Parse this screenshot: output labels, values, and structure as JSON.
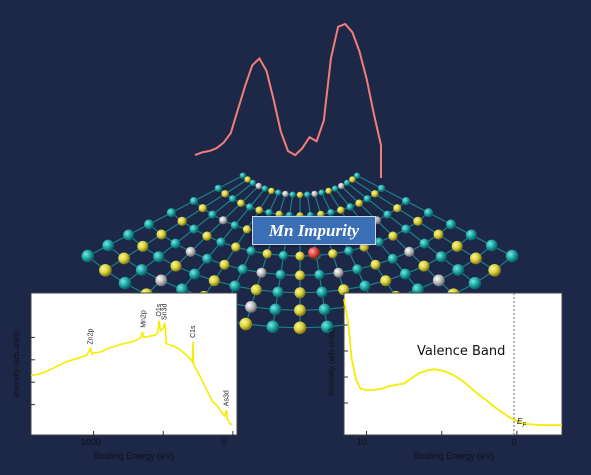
{
  "label": "Mn Impurity",
  "colors": {
    "background": "#1d2748",
    "peak_curve": "#f27e7a",
    "spectrum": "#f5ec00",
    "cyan_atom": "#1ba6a6",
    "gold_atom": "#d9d23a",
    "grey_atom": "#bdbdbd",
    "impurity_atom": "#e0463f"
  },
  "chart_data": [
    {
      "type": "line",
      "title": "",
      "xlabel": "Binding Energy (eV)",
      "ylabel": "Intensity (arb.units)",
      "x_ticks": [
        "1000",
        "0"
      ],
      "xlim": [
        1450,
        -30
      ],
      "x_reversed": true,
      "annotations": [
        "Zn2p",
        "Mn2p",
        "O1s",
        "Sn3d",
        "C1s",
        "As3d"
      ],
      "series": [
        {
          "x": [
            1450,
            1400,
            1350,
            1300,
            1250,
            1200,
            1150,
            1100,
            1050,
            1022,
            1010,
            1000,
            950,
            900,
            850,
            800,
            760,
            700,
            660,
            650,
            640,
            600,
            560,
            540,
            530,
            520,
            500,
            490,
            484,
            480,
            470,
            420,
            380,
            340,
            300,
            290,
            286,
            282,
            270,
            230,
            200,
            150,
            140,
            120,
            100,
            80,
            60,
            45,
            40,
            20,
            5
          ],
          "y": [
            0.46,
            0.47,
            0.49,
            0.52,
            0.55,
            0.58,
            0.6,
            0.62,
            0.64,
            0.7,
            0.65,
            0.66,
            0.67,
            0.7,
            0.72,
            0.74,
            0.75,
            0.77,
            0.8,
            0.85,
            0.8,
            0.81,
            0.82,
            0.84,
            0.95,
            0.86,
            0.88,
            0.92,
            0.89,
            0.75,
            0.74,
            0.72,
            0.69,
            0.65,
            0.6,
            0.58,
            0.76,
            0.56,
            0.53,
            0.44,
            0.36,
            0.24,
            0.22,
            0.2,
            0.17,
            0.13,
            0.1,
            0.15,
            0.07,
            0.03,
            0.02
          ]
        }
      ]
    },
    {
      "type": "line",
      "title": "Valence Band",
      "xlabel": "Binding Energy (eV)",
      "ylabel": "Intensity (arb.units)",
      "x_ticks": [
        "10",
        "5",
        "0"
      ],
      "xlim": [
        11.5,
        -3
      ],
      "x_reversed": true,
      "annotations": [
        "E_F"
      ],
      "series": [
        {
          "x": [
            11.5,
            11.2,
            11.0,
            10.7,
            10.4,
            10.0,
            9.5,
            9.0,
            8.5,
            8.0,
            7.5,
            7.0,
            6.5,
            6.0,
            5.5,
            5.0,
            4.5,
            4.0,
            3.5,
            3.0,
            2.5,
            2.0,
            1.5,
            1.0,
            0.5,
            0.0,
            -0.5,
            -1.0,
            -1.5,
            -2.0,
            -3.0
          ],
          "y": [
            1.0,
            0.8,
            0.55,
            0.38,
            0.31,
            0.3,
            0.3,
            0.31,
            0.33,
            0.34,
            0.35,
            0.39,
            0.43,
            0.45,
            0.46,
            0.45,
            0.43,
            0.4,
            0.36,
            0.31,
            0.26,
            0.22,
            0.17,
            0.13,
            0.09,
            0.06,
            0.04,
            0.035,
            0.03,
            0.03,
            0.03
          ]
        }
      ]
    },
    {
      "type": "line",
      "title": "",
      "series": [
        {
          "y": [
            0.05,
            0.07,
            0.08,
            0.1,
            0.14,
            0.21,
            0.38,
            0.55,
            0.7,
            0.75,
            0.66,
            0.45,
            0.22,
            0.08,
            0.05,
            0.1,
            0.18,
            0.15,
            0.3,
            0.75,
            0.98,
            1.0,
            0.94,
            0.8,
            0.6,
            0.35,
            0.12
          ]
        }
      ]
    }
  ]
}
